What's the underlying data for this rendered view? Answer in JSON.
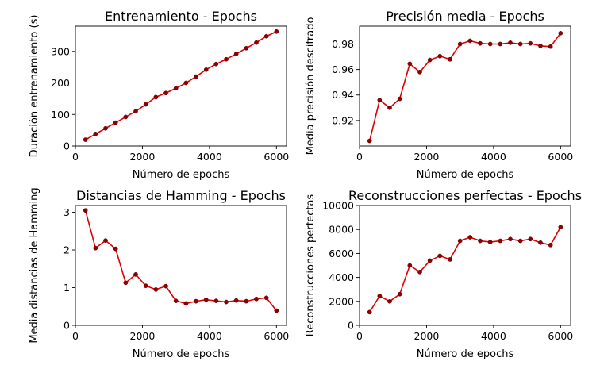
{
  "chart_data": [
    {
      "type": "line",
      "title": "Entrenamiento - Epochs",
      "xlabel": "Número de epochs",
      "ylabel": "Duración entrenamiento (s)",
      "xlim": [
        0,
        6300
      ],
      "ylim": [
        0,
        380
      ],
      "xticks": [
        0,
        2000,
        4000,
        6000
      ],
      "xtick_labels": [
        "0",
        "2000",
        "4000",
        "6000"
      ],
      "yticks": [
        0,
        100,
        200,
        300
      ],
      "ytick_labels": [
        "0",
        "100",
        "200",
        "300"
      ],
      "grid": false,
      "color": "#e00000",
      "x": [
        300,
        600,
        900,
        1200,
        1500,
        1800,
        2100,
        2400,
        2700,
        3000,
        3300,
        3600,
        3900,
        4200,
        4500,
        4800,
        5100,
        5400,
        5700,
        6000
      ],
      "values": [
        20,
        38,
        56,
        74,
        92,
        110,
        132,
        155,
        168,
        183,
        200,
        220,
        242,
        260,
        275,
        292,
        310,
        328,
        348,
        363
      ]
    },
    {
      "type": "line",
      "title": "Precisión media - Epochs",
      "xlabel": "Número de epochs",
      "ylabel": "Media precisión descifrado",
      "xlim": [
        0,
        6300
      ],
      "ylim": [
        0.9,
        0.994
      ],
      "xticks": [
        0,
        2000,
        4000,
        6000
      ],
      "xtick_labels": [
        "0",
        "2000",
        "4000",
        "6000"
      ],
      "yticks": [
        0.92,
        0.94,
        0.96,
        0.98
      ],
      "ytick_labels": [
        "0.92",
        "0.94",
        "0.96",
        "0.98"
      ],
      "grid": false,
      "color": "#e00000",
      "x": [
        300,
        600,
        900,
        1200,
        1500,
        1800,
        2100,
        2400,
        2700,
        3000,
        3300,
        3600,
        3900,
        4200,
        4500,
        4800,
        5100,
        5400,
        5700,
        6000
      ],
      "values": [
        0.904,
        0.936,
        0.93,
        0.937,
        0.9645,
        0.958,
        0.9675,
        0.9705,
        0.968,
        0.98,
        0.9825,
        0.9805,
        0.98,
        0.98,
        0.981,
        0.98,
        0.9805,
        0.9785,
        0.978,
        0.9885
      ]
    },
    {
      "type": "line",
      "title": "Distancias de Hamming - Epochs",
      "xlabel": "Número de epochs",
      "ylabel": "Media distancias de Hamming",
      "xlim": [
        0,
        6300
      ],
      "ylim": [
        0,
        3.18
      ],
      "xticks": [
        0,
        2000,
        4000,
        6000
      ],
      "xtick_labels": [
        "0",
        "2000",
        "4000",
        "6000"
      ],
      "yticks": [
        0,
        1,
        2,
        3
      ],
      "ytick_labels": [
        "0",
        "1",
        "2",
        "3"
      ],
      "grid": false,
      "color": "#e00000",
      "x": [
        300,
        600,
        900,
        1200,
        1500,
        1800,
        2100,
        2400,
        2700,
        3000,
        3300,
        3600,
        3900,
        4200,
        4500,
        4800,
        5100,
        5400,
        5700,
        6000
      ],
      "values": [
        3.05,
        2.05,
        2.25,
        2.03,
        1.13,
        1.35,
        1.05,
        0.95,
        1.04,
        0.65,
        0.58,
        0.64,
        0.68,
        0.65,
        0.62,
        0.66,
        0.64,
        0.7,
        0.73,
        0.39
      ]
    },
    {
      "type": "line",
      "title": "Reconstrucciones perfectas - Epochs",
      "xlabel": "Número de epochs",
      "ylabel": "Reconstrucciones perfectas",
      "xlim": [
        0,
        6300
      ],
      "ylim": [
        0,
        10000
      ],
      "xticks": [
        0,
        2000,
        4000,
        6000
      ],
      "xtick_labels": [
        "0",
        "2000",
        "4000",
        "6000"
      ],
      "yticks": [
        0,
        2000,
        4000,
        6000,
        8000,
        10000
      ],
      "ytick_labels": [
        "0",
        "2000",
        "4000",
        "6000",
        "8000",
        "10000"
      ],
      "grid": false,
      "color": "#e00000",
      "x": [
        300,
        600,
        900,
        1200,
        1500,
        1800,
        2100,
        2400,
        2700,
        3000,
        3300,
        3600,
        3900,
        4200,
        4500,
        4800,
        5100,
        5400,
        5700,
        6000
      ],
      "values": [
        1100,
        2450,
        2000,
        2600,
        5000,
        4450,
        5400,
        5800,
        5500,
        7050,
        7350,
        7050,
        6950,
        7050,
        7200,
        7050,
        7200,
        6900,
        6700,
        8200
      ]
    }
  ]
}
